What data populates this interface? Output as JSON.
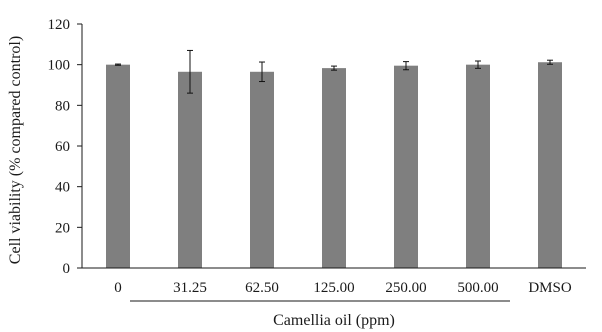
{
  "chart_data": {
    "type": "bar",
    "categories": [
      "0",
      "31.25",
      "62.50",
      "125.00",
      "250.00",
      "500.00",
      "DMSO"
    ],
    "values": [
      100,
      96.5,
      96.5,
      98.3,
      99.5,
      100,
      101.2
    ],
    "errors": [
      0.3,
      10.5,
      4.8,
      1.0,
      2.0,
      1.8,
      1.0
    ],
    "ylabel": "Cell viability (% compared control)",
    "xlabel": "Camellia oil (ppm)",
    "ylim": [
      0,
      120
    ],
    "yticks": [
      0,
      20,
      40,
      60,
      80,
      100,
      120
    ],
    "grid": false,
    "legend": "none",
    "bar_color": "#7f7f7f",
    "axis_color": "#1a1a1a",
    "bracket": {
      "from": "31.25",
      "to": "500.00"
    }
  }
}
